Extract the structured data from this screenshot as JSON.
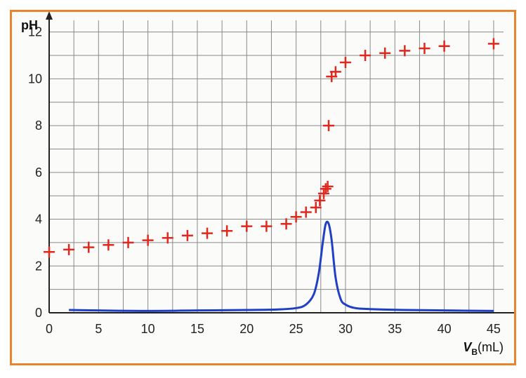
{
  "chart_data": {
    "type": "scatter",
    "ylabel": "pH",
    "xlabel_var": "V",
    "xlabel_sub": "B",
    "xlabel_unit": "(mL)",
    "xlim": [
      0,
      46
    ],
    "ylim": [
      0,
      12.5
    ],
    "x_ticks": [
      0,
      5,
      10,
      15,
      20,
      25,
      30,
      35,
      40,
      45
    ],
    "y_ticks": [
      0,
      2,
      4,
      6,
      8,
      10,
      12
    ],
    "grid": true,
    "colors": {
      "points": "#e0281e",
      "curve": "#1f3fc4",
      "grid": "#8a8a8a",
      "frame": "#e8842c"
    },
    "series": [
      {
        "marker": "plus",
        "x": [
          0,
          2,
          4,
          6,
          8,
          10,
          12,
          14,
          16,
          18,
          20,
          22,
          24,
          25,
          26,
          27,
          27.4,
          27.8,
          28,
          28.2,
          28.3,
          28.6,
          29,
          30,
          32,
          34,
          36,
          38,
          40,
          45
        ],
        "y": [
          2.6,
          2.7,
          2.8,
          2.9,
          3.0,
          3.1,
          3.2,
          3.3,
          3.4,
          3.5,
          3.7,
          3.7,
          3.8,
          4.1,
          4.3,
          4.5,
          4.8,
          5.1,
          5.3,
          5.4,
          8.0,
          10.1,
          10.3,
          10.7,
          11.0,
          11.1,
          11.2,
          11.3,
          11.4,
          11.5
        ]
      },
      {
        "marker": "line",
        "x": [
          2,
          5,
          10,
          15,
          20,
          23,
          25,
          26,
          26.8,
          27.3,
          27.7,
          28,
          28.3,
          28.6,
          29,
          29.5,
          30,
          31,
          33,
          36,
          40,
          45
        ],
        "y": [
          0.12,
          0.1,
          0.08,
          0.1,
          0.12,
          0.14,
          0.2,
          0.35,
          0.8,
          1.7,
          3.0,
          3.8,
          3.8,
          3.1,
          1.5,
          0.6,
          0.35,
          0.2,
          0.15,
          0.12,
          0.1,
          0.08
        ]
      }
    ]
  }
}
